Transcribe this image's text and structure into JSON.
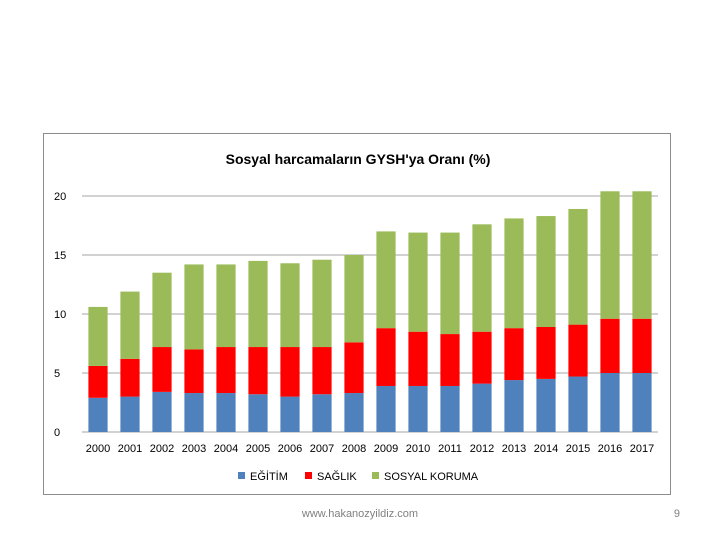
{
  "chart_data": {
    "type": "bar",
    "stacked": true,
    "title": "Sosyal harcamaların GYSH'ya Oranı (%)",
    "xlabel": "",
    "ylabel": "",
    "ylim": [
      0,
      20
    ],
    "yticks": [
      0,
      5,
      10,
      15,
      20
    ],
    "grid": true,
    "legend": "bottom",
    "categories": [
      "2000",
      "2001",
      "2002",
      "2003",
      "2004",
      "2005",
      "2006",
      "2007",
      "2008",
      "2009",
      "2010",
      "2011",
      "2012",
      "2013",
      "2014",
      "2015",
      "2016",
      "2017"
    ],
    "series": [
      {
        "name": "EĞİTİM",
        "color": "#4f81bd",
        "values": [
          2.9,
          3.0,
          3.4,
          3.3,
          3.3,
          3.2,
          3.0,
          3.2,
          3.3,
          3.9,
          3.9,
          3.9,
          4.1,
          4.4,
          4.5,
          4.7,
          5.0,
          5.0
        ]
      },
      {
        "name": "SAĞLIK",
        "color": "#ff0000",
        "values": [
          2.7,
          3.2,
          3.8,
          3.7,
          3.9,
          4.0,
          4.2,
          4.0,
          4.3,
          4.9,
          4.6,
          4.4,
          4.4,
          4.4,
          4.4,
          4.4,
          4.6,
          4.6
        ]
      },
      {
        "name": "SOSYAL KORUMA",
        "color": "#9bbb59",
        "values": [
          5.0,
          5.7,
          6.3,
          7.2,
          7.0,
          7.3,
          7.1,
          7.4,
          7.4,
          8.2,
          8.4,
          8.6,
          9.1,
          9.3,
          9.4,
          9.8,
          10.8,
          10.8
        ]
      }
    ]
  },
  "footer": {
    "url": "www.hakanozyildiz.com",
    "slide_number": "9"
  }
}
